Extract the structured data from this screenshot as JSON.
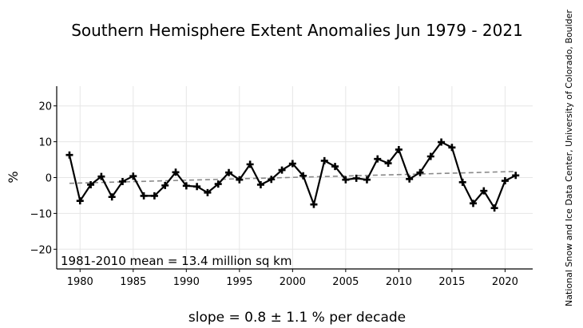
{
  "chart_data": {
    "type": "line",
    "title": "Southern Hemisphere Extent Anomalies Jun 1979 - 2021",
    "ylabel": "%",
    "xlabel": "",
    "xlim": [
      1977.8,
      2022.6
    ],
    "ylim": [
      -25.5,
      25.5
    ],
    "xticks": [
      1980,
      1985,
      1990,
      1995,
      2000,
      2005,
      2010,
      2015,
      2020
    ],
    "yticks": [
      -20,
      -10,
      0,
      10,
      20
    ],
    "grid": true,
    "annotation": "1981-2010 mean = 13.4 million sq km",
    "slope_text": "slope = 0.8 ± 1.1 % per decade",
    "credit": "National Snow and Ice Data Center, University of Colorado, Boulder",
    "series": [
      {
        "color": "#000000",
        "marker": "plus",
        "x": [
          1979,
          1980,
          1981,
          1982,
          1983,
          1984,
          1985,
          1986,
          1987,
          1988,
          1989,
          1990,
          1991,
          1992,
          1993,
          1994,
          1995,
          1996,
          1997,
          1998,
          1999,
          2000,
          2001,
          2002,
          2003,
          2004,
          2005,
          2006,
          2007,
          2008,
          2009,
          2010,
          2011,
          2012,
          2013,
          2014,
          2015,
          2016,
          2017,
          2018,
          2019,
          2020,
          2021
        ],
        "values": [
          6.3,
          -6.5,
          -2.0,
          0.3,
          -5.4,
          -1.1,
          0.4,
          -5.1,
          -5.1,
          -2.2,
          1.5,
          -2.3,
          -2.5,
          -4.2,
          -1.8,
          1.4,
          -0.6,
          3.7,
          -2.0,
          -0.5,
          2.1,
          3.9,
          0.5,
          -7.5,
          4.7,
          3.1,
          -0.6,
          -0.2,
          -0.6,
          5.2,
          4.0,
          7.8,
          -0.4,
          1.4,
          5.9,
          9.9,
          8.4,
          -1.3,
          -7.2,
          -3.7,
          -8.5,
          -0.9,
          0.6
        ]
      },
      {
        "color": "#888888",
        "style": "dashed",
        "x": [
          1979,
          2021
        ],
        "values": [
          -1.6,
          1.7
        ]
      }
    ]
  }
}
